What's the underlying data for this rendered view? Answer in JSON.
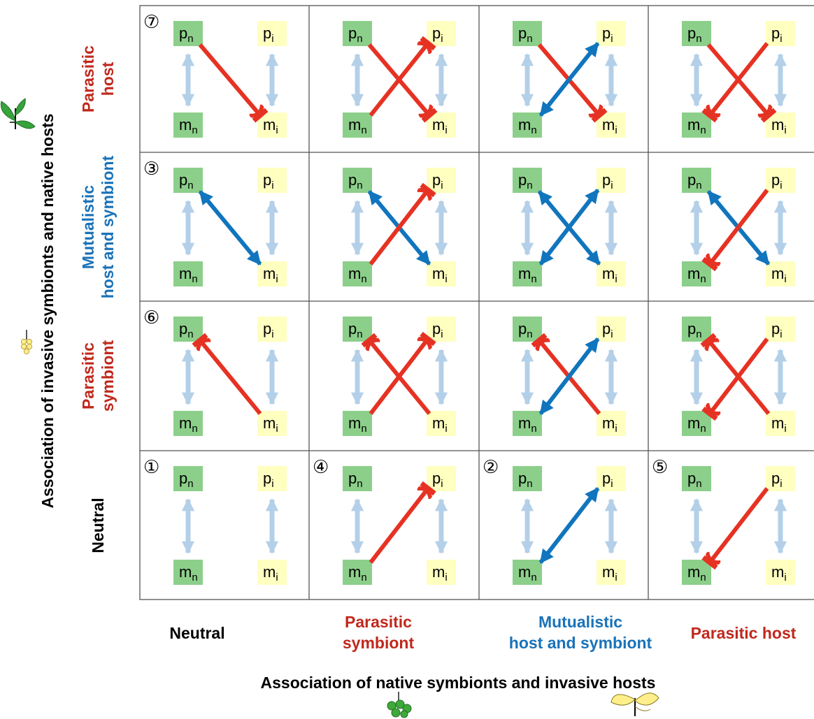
{
  "colors": {
    "native_box": "#8ccf8a",
    "invasive_box": "#ffffc0",
    "neutral_arrow": "#b4d0e8",
    "mutualistic": "#1175bd",
    "parasitic": "#e63223",
    "red_text": "#c0281c",
    "blue_text": "#1a72b8",
    "grid_line": "#555555"
  },
  "y_axis": {
    "title": "Association of invasive symbionts and native hosts",
    "rows": [
      {
        "label_lines": [
          "Parasitic",
          "host"
        ],
        "color": "red"
      },
      {
        "label_lines": [
          "Mutualistic",
          "host and symbiont"
        ],
        "color": "blue"
      },
      {
        "label_lines": [
          "Parasitic",
          "symbiont"
        ],
        "color": "red"
      },
      {
        "label_lines": [
          "Neutral"
        ],
        "color": "black"
      }
    ]
  },
  "x_axis": {
    "title": "Association of native symbionts and invasive hosts",
    "columns": [
      {
        "label_lines": [
          "Neutral"
        ],
        "color": "black"
      },
      {
        "label_lines": [
          "Parasitic",
          "symbiont"
        ],
        "color": "red"
      },
      {
        "label_lines": [
          "Mutualistic",
          "host and symbiont"
        ],
        "color": "blue"
      },
      {
        "label_lines": [
          "Parasitic host"
        ],
        "color": "red"
      }
    ]
  },
  "node_labels": {
    "pn": {
      "base": "p",
      "sub": "n"
    },
    "pi": {
      "base": "p",
      "sub": "i"
    },
    "mn": {
      "base": "m",
      "sub": "n"
    },
    "mi": {
      "base": "m",
      "sub": "i"
    }
  },
  "cells": [
    {
      "row": 0,
      "col": 0,
      "number": "⑦",
      "x_rel": "none",
      "y_rel": "parasitic-host"
    },
    {
      "row": 0,
      "col": 1,
      "number": "",
      "x_rel": "parasitic-symbiont",
      "y_rel": "parasitic-host"
    },
    {
      "row": 0,
      "col": 2,
      "number": "",
      "x_rel": "mutualistic",
      "y_rel": "parasitic-host"
    },
    {
      "row": 0,
      "col": 3,
      "number": "",
      "x_rel": "parasitic-host",
      "y_rel": "parasitic-host"
    },
    {
      "row": 1,
      "col": 0,
      "number": "③",
      "x_rel": "none",
      "y_rel": "mutualistic"
    },
    {
      "row": 1,
      "col": 1,
      "number": "",
      "x_rel": "parasitic-symbiont",
      "y_rel": "mutualistic"
    },
    {
      "row": 1,
      "col": 2,
      "number": "",
      "x_rel": "mutualistic",
      "y_rel": "mutualistic"
    },
    {
      "row": 1,
      "col": 3,
      "number": "",
      "x_rel": "parasitic-host",
      "y_rel": "mutualistic"
    },
    {
      "row": 2,
      "col": 0,
      "number": "⑥",
      "x_rel": "none",
      "y_rel": "parasitic-symbiont"
    },
    {
      "row": 2,
      "col": 1,
      "number": "",
      "x_rel": "parasitic-symbiont",
      "y_rel": "parasitic-symbiont"
    },
    {
      "row": 2,
      "col": 2,
      "number": "",
      "x_rel": "mutualistic",
      "y_rel": "parasitic-symbiont"
    },
    {
      "row": 2,
      "col": 3,
      "number": "",
      "x_rel": "parasitic-host",
      "y_rel": "parasitic-symbiont"
    },
    {
      "row": 3,
      "col": 0,
      "number": "①",
      "x_rel": "none",
      "y_rel": "none"
    },
    {
      "row": 3,
      "col": 1,
      "number": "④",
      "x_rel": "parasitic-symbiont",
      "y_rel": "none"
    },
    {
      "row": 3,
      "col": 2,
      "number": "②",
      "x_rel": "mutualistic",
      "y_rel": "none"
    },
    {
      "row": 3,
      "col": 3,
      "number": "⑤",
      "x_rel": "parasitic-host",
      "y_rel": "none"
    }
  ]
}
